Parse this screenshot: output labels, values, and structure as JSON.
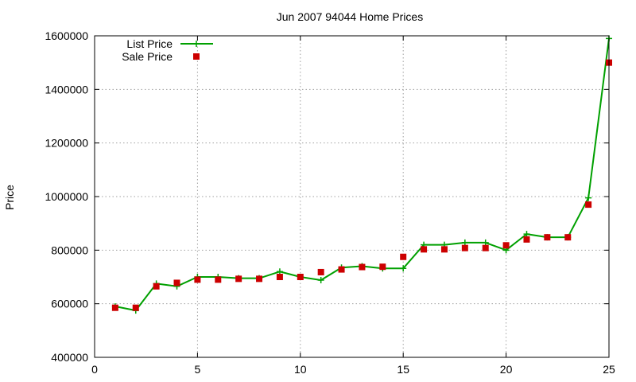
{
  "chart_data": {
    "type": "line",
    "title": "Jun 2007 94044 Home Prices",
    "xlabel": "",
    "ylabel": "Price",
    "xlim": [
      0,
      25
    ],
    "ylim": [
      400000,
      1600000
    ],
    "xticks": [
      0,
      5,
      10,
      15,
      20,
      25
    ],
    "yticks": [
      400000,
      600000,
      800000,
      1000000,
      1200000,
      1400000,
      1600000
    ],
    "grid": true,
    "legend_position": "top-left",
    "series": [
      {
        "name": "List Price",
        "style": "line-with-plus-markers",
        "color": "#00a000",
        "x": [
          1,
          2,
          3,
          4,
          5,
          6,
          7,
          8,
          9,
          10,
          11,
          12,
          13,
          14,
          15,
          16,
          17,
          18,
          19,
          20,
          21,
          22,
          23,
          24,
          25
        ],
        "values": [
          590000,
          575000,
          675000,
          665000,
          700000,
          700000,
          695000,
          695000,
          720000,
          700000,
          688000,
          735000,
          740000,
          732000,
          732000,
          820000,
          820000,
          828000,
          828000,
          800000,
          860000,
          848000,
          848000,
          995000,
          1590000
        ]
      },
      {
        "name": "Sale Price",
        "style": "square-markers",
        "color": "#cc0000",
        "x": [
          1,
          2,
          3,
          4,
          5,
          6,
          7,
          8,
          9,
          10,
          11,
          12,
          13,
          14,
          15,
          16,
          17,
          18,
          19,
          20,
          21,
          22,
          23,
          24,
          25
        ],
        "values": [
          585000,
          585000,
          665000,
          678000,
          690000,
          690000,
          693000,
          693000,
          700000,
          700000,
          718000,
          728000,
          737000,
          738000,
          775000,
          803000,
          803000,
          808000,
          808000,
          818000,
          840000,
          848000,
          848000,
          970000,
          1500000
        ]
      }
    ]
  }
}
